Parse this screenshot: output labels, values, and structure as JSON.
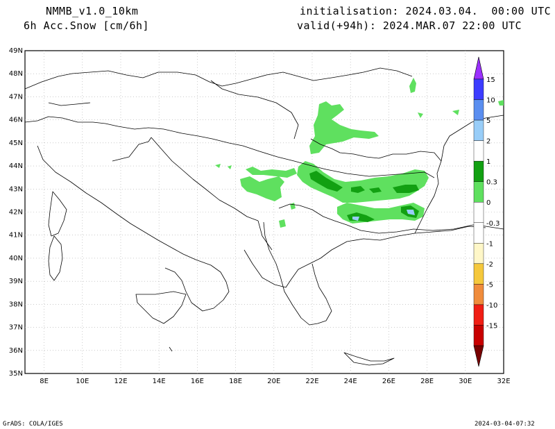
{
  "header": {
    "model": "NMMB_v1.0_10km",
    "field": "6h Acc.Snow [cm/6h]",
    "init": "initialisation: 2024.03.04.  00:00 UTC",
    "valid": "valid(+94h): 2024.MAR.07 22:00 UTC"
  },
  "axes": {
    "lat_labels": [
      "49N",
      "48N",
      "47N",
      "46N",
      "45N",
      "44N",
      "43N",
      "42N",
      "41N",
      "40N",
      "39N",
      "38N",
      "37N",
      "36N",
      "35N"
    ],
    "lon_labels": [
      "8E",
      "10E",
      "12E",
      "14E",
      "16E",
      "18E",
      "20E",
      "22E",
      "24E",
      "26E",
      "28E",
      "30E",
      "32E"
    ],
    "lat_range": [
      35,
      49
    ],
    "lon_range": [
      7,
      32
    ],
    "grid": true
  },
  "colorbar": {
    "labels": [
      "15",
      "10",
      "5",
      "2",
      "1",
      "0.3",
      "0",
      "-0.3",
      "-1",
      "-2",
      "-5",
      "-10",
      "-15"
    ],
    "colors": [
      "#9b30ff",
      "#3c3cff",
      "#5a8ef0",
      "#98cdf8",
      "#ffffff",
      "#12a012",
      "#5fe05f",
      "#ffffff",
      "#ffffff",
      "#fff7c8",
      "#f5c83c",
      "#f08c3c",
      "#f01e14",
      "#c80000",
      "#780000"
    ]
  },
  "footer": {
    "left": "GrADS: COLA/IGES",
    "right": "2024-03-04-07:32"
  }
}
